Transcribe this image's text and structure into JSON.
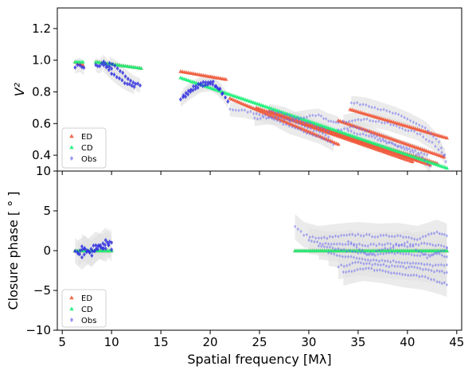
{
  "figure": {
    "x_axis_label": "Spatial frequency [Mλ]",
    "colors": {
      "ED": "#f05a3c",
      "CD": "#1ef07a",
      "Obs": "#6a6af0",
      "obs_dense": "#3232e0",
      "band": "#e2e2e2"
    }
  },
  "chart_data": [
    {
      "type": "scatter",
      "title": "",
      "xlabel": "Spatial frequency [Mλ]",
      "ylabel": "V²",
      "xlim": [
        4.5,
        45.5
      ],
      "ylim": [
        0.3,
        1.33
      ],
      "x_ticks": [
        5,
        10,
        15,
        20,
        25,
        30,
        35,
        40,
        45
      ],
      "x_tick_labels": [
        "5",
        "10",
        "15",
        "20",
        "25",
        "30",
        "35",
        "40",
        "45"
      ],
      "y_ticks": [
        0.4,
        0.6,
        0.8,
        1.0,
        1.2
      ],
      "y_tick_labels": [
        "0.4",
        "0.6",
        "0.8",
        "1.0",
        "1.2"
      ],
      "legend": {
        "position": "lower-left",
        "entries": [
          "ED",
          "CD",
          "Obs"
        ]
      },
      "series": [
        {
          "name": "ED",
          "marker": "triangle",
          "segments": [
            [
              [
                6.3,
                0.99
              ],
              [
                7.1,
                0.97
              ]
            ],
            [
              [
                8.4,
                0.99
              ],
              [
                13.0,
                0.95
              ]
            ],
            [
              [
                17.0,
                0.93
              ],
              [
                21.6,
                0.88
              ]
            ],
            [
              [
                22.0,
                0.76
              ],
              [
                33.0,
                0.47
              ]
            ],
            [
              [
                24.7,
                0.7
              ],
              [
                40.5,
                0.36
              ]
            ],
            [
              [
                26.0,
                0.68
              ],
              [
                42.3,
                0.34
              ]
            ],
            [
              [
                29.5,
                0.6
              ],
              [
                41.0,
                0.37
              ]
            ],
            [
              [
                31.0,
                0.58
              ],
              [
                43.0,
                0.35
              ]
            ],
            [
              [
                34.2,
                0.69
              ],
              [
                44.0,
                0.51
              ]
            ],
            [
              [
                33.0,
                0.62
              ],
              [
                43.7,
                0.39
              ]
            ]
          ]
        },
        {
          "name": "CD",
          "marker": "triangle",
          "segments": [
            [
              [
                6.3,
                0.99
              ],
              [
                7.1,
                0.99
              ]
            ],
            [
              [
                8.4,
                0.99
              ],
              [
                13.0,
                0.95
              ]
            ],
            [
              [
                17.0,
                0.89
              ],
              [
                44.0,
                0.32
              ]
            ]
          ]
        },
        {
          "name": "Obs",
          "marker": "diamond",
          "segments": [
            [
              [
                6.3,
                0.96
              ],
              [
                6.8,
                0.97
              ],
              [
                7.2,
                0.95
              ]
            ],
            [
              [
                8.4,
                0.97
              ],
              [
                8.8,
                0.96
              ],
              [
                9.2,
                0.99
              ],
              [
                9.6,
                0.96
              ],
              [
                10.0,
                0.95
              ]
            ],
            [
              [
                9.2,
                0.97
              ],
              [
                10.0,
                0.92
              ],
              [
                10.8,
                0.88
              ],
              [
                11.6,
                0.85
              ],
              [
                12.3,
                0.83
              ]
            ],
            [
              [
                9.8,
                0.98
              ],
              [
                10.6,
                0.95
              ],
              [
                11.4,
                0.9
              ],
              [
                12.2,
                0.86
              ],
              [
                12.9,
                0.84
              ]
            ],
            [
              [
                17.0,
                0.75
              ],
              [
                18.0,
                0.8
              ],
              [
                19.0,
                0.84
              ],
              [
                20.0,
                0.85
              ],
              [
                21.0,
                0.82
              ],
              [
                21.8,
                0.74
              ]
            ],
            [
              [
                17.3,
                0.78
              ],
              [
                18.3,
                0.83
              ],
              [
                19.3,
                0.86
              ],
              [
                20.3,
                0.86
              ],
              [
                21.2,
                0.79
              ]
            ],
            [
              [
                22.0,
                0.69
              ],
              [
                23.5,
                0.68
              ],
              [
                25.0,
                0.66
              ],
              [
                26.5,
                0.63
              ],
              [
                28.0,
                0.58
              ],
              [
                29.5,
                0.55
              ],
              [
                31.0,
                0.52
              ],
              [
                32.5,
                0.47
              ]
            ],
            [
              [
                24.5,
                0.63
              ],
              [
                26.0,
                0.64
              ],
              [
                27.5,
                0.63
              ],
              [
                29.0,
                0.6
              ],
              [
                30.5,
                0.56
              ],
              [
                32.0,
                0.52
              ]
            ],
            [
              [
                26.0,
                0.68
              ],
              [
                27.5,
                0.66
              ],
              [
                29.0,
                0.62
              ],
              [
                30.5,
                0.59
              ],
              [
                32.0,
                0.55
              ]
            ],
            [
              [
                28.0,
                0.62
              ],
              [
                29.5,
                0.64
              ],
              [
                31.0,
                0.65
              ],
              [
                32.0,
                0.62
              ],
              [
                33.0,
                0.6
              ]
            ],
            [
              [
                33.0,
                0.56
              ],
              [
                34.5,
                0.58
              ],
              [
                36.0,
                0.55
              ],
              [
                37.5,
                0.5
              ],
              [
                39.0,
                0.46
              ],
              [
                40.5,
                0.43
              ],
              [
                42.0,
                0.4
              ]
            ],
            [
              [
                33.5,
                0.61
              ],
              [
                35.0,
                0.63
              ],
              [
                36.5,
                0.62
              ],
              [
                38.0,
                0.6
              ],
              [
                39.5,
                0.57
              ],
              [
                41.0,
                0.54
              ],
              [
                42.5,
                0.48
              ],
              [
                43.8,
                0.4
              ]
            ],
            [
              [
                34.3,
                0.73
              ],
              [
                35.8,
                0.72
              ],
              [
                37.3,
                0.69
              ],
              [
                38.8,
                0.66
              ],
              [
                40.3,
                0.62
              ],
              [
                41.8,
                0.57
              ],
              [
                43.2,
                0.48
              ],
              [
                43.9,
                0.36
              ]
            ],
            [
              [
                34.0,
                0.55
              ],
              [
                35.5,
                0.53
              ],
              [
                37.0,
                0.5
              ],
              [
                38.5,
                0.47
              ],
              [
                40.0,
                0.43
              ],
              [
                41.5,
                0.39
              ],
              [
                42.3,
                0.33
              ]
            ]
          ]
        }
      ]
    },
    {
      "type": "scatter",
      "title": "",
      "xlabel": "Spatial frequency [Mλ]",
      "ylabel": "Closure phase [ ° ]",
      "xlim": [
        4.5,
        45.5
      ],
      "ylim": [
        -10,
        10
      ],
      "x_ticks": [
        5,
        10,
        15,
        20,
        25,
        30,
        35,
        40,
        45
      ],
      "x_tick_labels": [
        "5",
        "10",
        "15",
        "20",
        "25",
        "30",
        "35",
        "40",
        "45"
      ],
      "y_ticks": [
        -10,
        -5,
        0,
        5,
        10
      ],
      "y_tick_labels": [
        "−10",
        "−5",
        "0",
        "5",
        "10"
      ],
      "legend": {
        "position": "lower-left",
        "entries": [
          "ED",
          "CD",
          "Obs"
        ]
      },
      "series": [
        {
          "name": "ED",
          "marker": "triangle",
          "segments": [
            [
              [
                6.3,
                0.0
              ],
              [
                10.0,
                0.0
              ]
            ],
            [
              [
                28.6,
                0.0
              ],
              [
                44.0,
                0.0
              ]
            ]
          ]
        },
        {
          "name": "CD",
          "marker": "triangle",
          "segments": [
            [
              [
                6.3,
                0.0
              ],
              [
                10.0,
                0.0
              ]
            ],
            [
              [
                28.6,
                0.0
              ],
              [
                44.0,
                0.0
              ]
            ]
          ]
        },
        {
          "name": "Obs",
          "marker": "diamond",
          "segments": [
            [
              [
                6.3,
                0.0
              ],
              [
                7.0,
                -0.8
              ],
              [
                7.7,
                0.0
              ],
              [
                8.4,
                0.8
              ],
              [
                9.1,
                0.4
              ],
              [
                9.8,
                1.2
              ]
            ],
            [
              [
                6.6,
                -0.3
              ],
              [
                7.3,
                0.3
              ],
              [
                8.0,
                -0.5
              ],
              [
                8.7,
                0.6
              ],
              [
                9.4,
                0.2
              ],
              [
                10.0,
                1.0
              ]
            ],
            [
              [
                7.0,
                0.5
              ],
              [
                7.8,
                -0.3
              ],
              [
                8.6,
                0.3
              ],
              [
                9.4,
                1.3
              ],
              [
                10.0,
                0.2
              ]
            ],
            [
              [
                28.6,
                3.0
              ],
              [
                29.5,
                2.0
              ],
              [
                31.0,
                1.5
              ],
              [
                33.0,
                1.8
              ],
              [
                35.0,
                2.0
              ],
              [
                37.0,
                1.8
              ],
              [
                39.0,
                1.9
              ],
              [
                41.0,
                1.5
              ],
              [
                43.0,
                2.3
              ],
              [
                44.0,
                1.8
              ]
            ],
            [
              [
                30.0,
                1.2
              ],
              [
                32.0,
                0.8
              ],
              [
                34.0,
                0.9
              ],
              [
                36.0,
                0.7
              ],
              [
                38.0,
                0.8
              ],
              [
                40.0,
                0.6
              ],
              [
                42.0,
                0.9
              ],
              [
                44.0,
                0.4
              ]
            ],
            [
              [
                31.0,
                0.5
              ],
              [
                33.0,
                0.2
              ],
              [
                35.0,
                -0.3
              ],
              [
                37.0,
                -0.5
              ],
              [
                39.0,
                -0.3
              ],
              [
                41.0,
                -0.6
              ],
              [
                43.0,
                -0.4
              ],
              [
                44.0,
                -0.8
              ]
            ],
            [
              [
                32.0,
                -0.3
              ],
              [
                34.0,
                -0.8
              ],
              [
                36.0,
                -1.1
              ],
              [
                38.0,
                -1.3
              ],
              [
                40.0,
                -1.5
              ],
              [
                42.0,
                -1.8
              ],
              [
                44.0,
                -1.9
              ]
            ],
            [
              [
                33.0,
                -2.0
              ],
              [
                35.0,
                -1.5
              ],
              [
                37.0,
                -1.8
              ],
              [
                39.0,
                -2.0
              ],
              [
                41.0,
                -2.2
              ],
              [
                43.0,
                -2.6
              ],
              [
                44.0,
                -2.8
              ]
            ],
            [
              [
                33.5,
                -2.8
              ],
              [
                35.5,
                -2.2
              ],
              [
                37.5,
                -2.5
              ],
              [
                39.5,
                -3.0
              ],
              [
                41.5,
                -3.3
              ],
              [
                43.0,
                -3.8
              ],
              [
                44.0,
                -4.2
              ]
            ],
            [
              [
                34.0,
                1.2
              ],
              [
                36.0,
                -0.5
              ],
              [
                38.0,
                0.3
              ],
              [
                40.0,
                1.0
              ],
              [
                42.0,
                -0.8
              ],
              [
                44.0,
                0.2
              ]
            ]
          ]
        }
      ]
    }
  ]
}
